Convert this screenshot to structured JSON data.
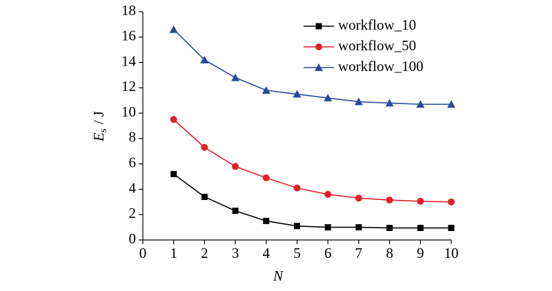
{
  "chart_data": {
    "type": "line",
    "xlabel": "N",
    "ylabel": {
      "main": "E",
      "sub": "s",
      "unit": "/ J"
    },
    "x": [
      1,
      2,
      3,
      4,
      5,
      6,
      7,
      8,
      9,
      10
    ],
    "series": [
      {
        "name": "workflow_10",
        "color": "#000000",
        "marker": "square",
        "values": [
          5.2,
          3.4,
          2.3,
          1.5,
          1.1,
          1.0,
          1.0,
          0.95,
          0.95,
          0.95
        ]
      },
      {
        "name": "workflow_50",
        "color": "#e3202a",
        "marker": "circle",
        "values": [
          9.5,
          7.3,
          5.8,
          4.9,
          4.1,
          3.6,
          3.3,
          3.15,
          3.05,
          3.0
        ]
      },
      {
        "name": "workflow_100",
        "color": "#2a4c9c",
        "marker": "triangle",
        "values": [
          16.6,
          14.2,
          12.8,
          11.8,
          11.5,
          11.2,
          10.9,
          10.8,
          10.7,
          10.7
        ]
      }
    ],
    "xlim": [
      0,
      10
    ],
    "xticks": [
      0,
      1,
      2,
      3,
      4,
      5,
      6,
      7,
      8,
      9,
      10
    ],
    "ylim": [
      0,
      18
    ],
    "yticks": [
      0,
      2,
      4,
      6,
      8,
      10,
      12,
      14,
      16,
      18
    ],
    "grid": false,
    "legend": "top-right"
  }
}
